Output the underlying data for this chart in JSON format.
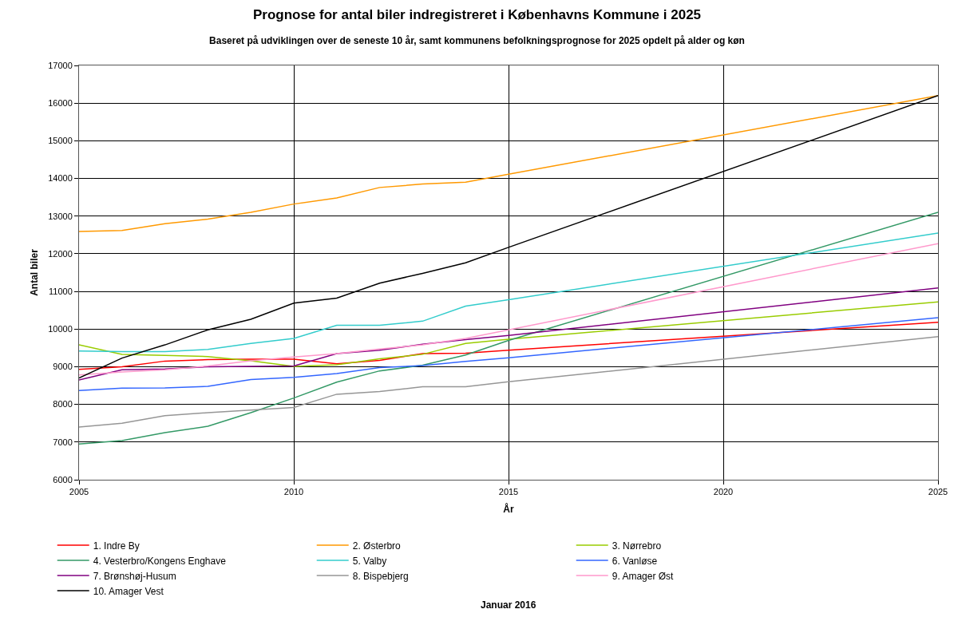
{
  "chart_data": {
    "type": "line",
    "title": "Prognose for antal biler indregistreret i Københavns Kommune i 2025",
    "subtitle": "Baseret på udviklingen over de seneste 10 år, samt kommunens befolkningsprognose for 2025 opdelt på alder og køn",
    "xlabel": "År",
    "ylabel": "Antal biler",
    "annotations": [
      "Januar 2016"
    ],
    "x": [
      2005,
      2006,
      2007,
      2008,
      2009,
      2010,
      2011,
      2012,
      2013,
      2014,
      2015,
      2025
    ],
    "series": [
      {
        "name": "1. Indre By",
        "color": "#ff0000",
        "values": [
          8930,
          9000,
          9150,
          9190,
          9200,
          9200,
          9080,
          9170,
          9350,
          9360,
          9440,
          10180
        ]
      },
      {
        "name": "2. Østerbro",
        "color": "#ff9900",
        "values": [
          12590,
          12620,
          12800,
          12920,
          13100,
          13320,
          13480,
          13760,
          13850,
          13900,
          14110,
          16200
        ]
      },
      {
        "name": "3. Nørrebro",
        "color": "#99cc00",
        "values": [
          9580,
          9330,
          9300,
          9270,
          9160,
          9010,
          9050,
          9210,
          9330,
          9620,
          9730,
          10720
        ]
      },
      {
        "name": "4. Vesterbro/Kongens Enghave",
        "color": "#339966",
        "values": [
          6950,
          7040,
          7250,
          7420,
          7780,
          8170,
          8590,
          8890,
          9040,
          9310,
          9700,
          13100
        ]
      },
      {
        "name": "5. Valby",
        "color": "#33cccc",
        "values": [
          9420,
          9400,
          9400,
          9460,
          9620,
          9750,
          10100,
          10100,
          10210,
          10610,
          10780,
          12550
        ]
      },
      {
        "name": "6. Vanløse",
        "color": "#3366ff",
        "values": [
          8370,
          8430,
          8440,
          8480,
          8660,
          8720,
          8820,
          8980,
          9030,
          9140,
          9240,
          10300
        ]
      },
      {
        "name": "7. Brønshøj-Husum",
        "color": "#800080",
        "values": [
          8650,
          8920,
          8940,
          9000,
          9010,
          9020,
          9350,
          9440,
          9600,
          9720,
          9830,
          11090
        ]
      },
      {
        "name": "8. Bispebjerg",
        "color": "#969696",
        "values": [
          7400,
          7500,
          7700,
          7780,
          7850,
          7920,
          8270,
          8340,
          8470,
          8470,
          8600,
          9800
        ]
      },
      {
        "name": "9. Amager Øst",
        "color": "#ff99cc",
        "values": [
          8780,
          8860,
          8920,
          9020,
          9160,
          9260,
          9350,
          9470,
          9580,
          9750,
          9980,
          12270
        ]
      },
      {
        "name": "10. Amager Vest",
        "color": "#000000",
        "values": [
          8700,
          9230,
          9580,
          9980,
          10260,
          10690,
          10820,
          11220,
          11480,
          11760,
          12170,
          16200
        ]
      }
    ],
    "xlim": [
      2005,
      2025
    ],
    "xticks": [
      2005,
      2010,
      2015,
      2020,
      2025
    ],
    "ylim": [
      6000,
      17000
    ],
    "yticks": [
      6000,
      7000,
      8000,
      9000,
      10000,
      11000,
      12000,
      13000,
      14000,
      15000,
      16000,
      17000
    ],
    "grid": true,
    "legend": "bottom",
    "marker": "none",
    "line_style": "solid"
  }
}
